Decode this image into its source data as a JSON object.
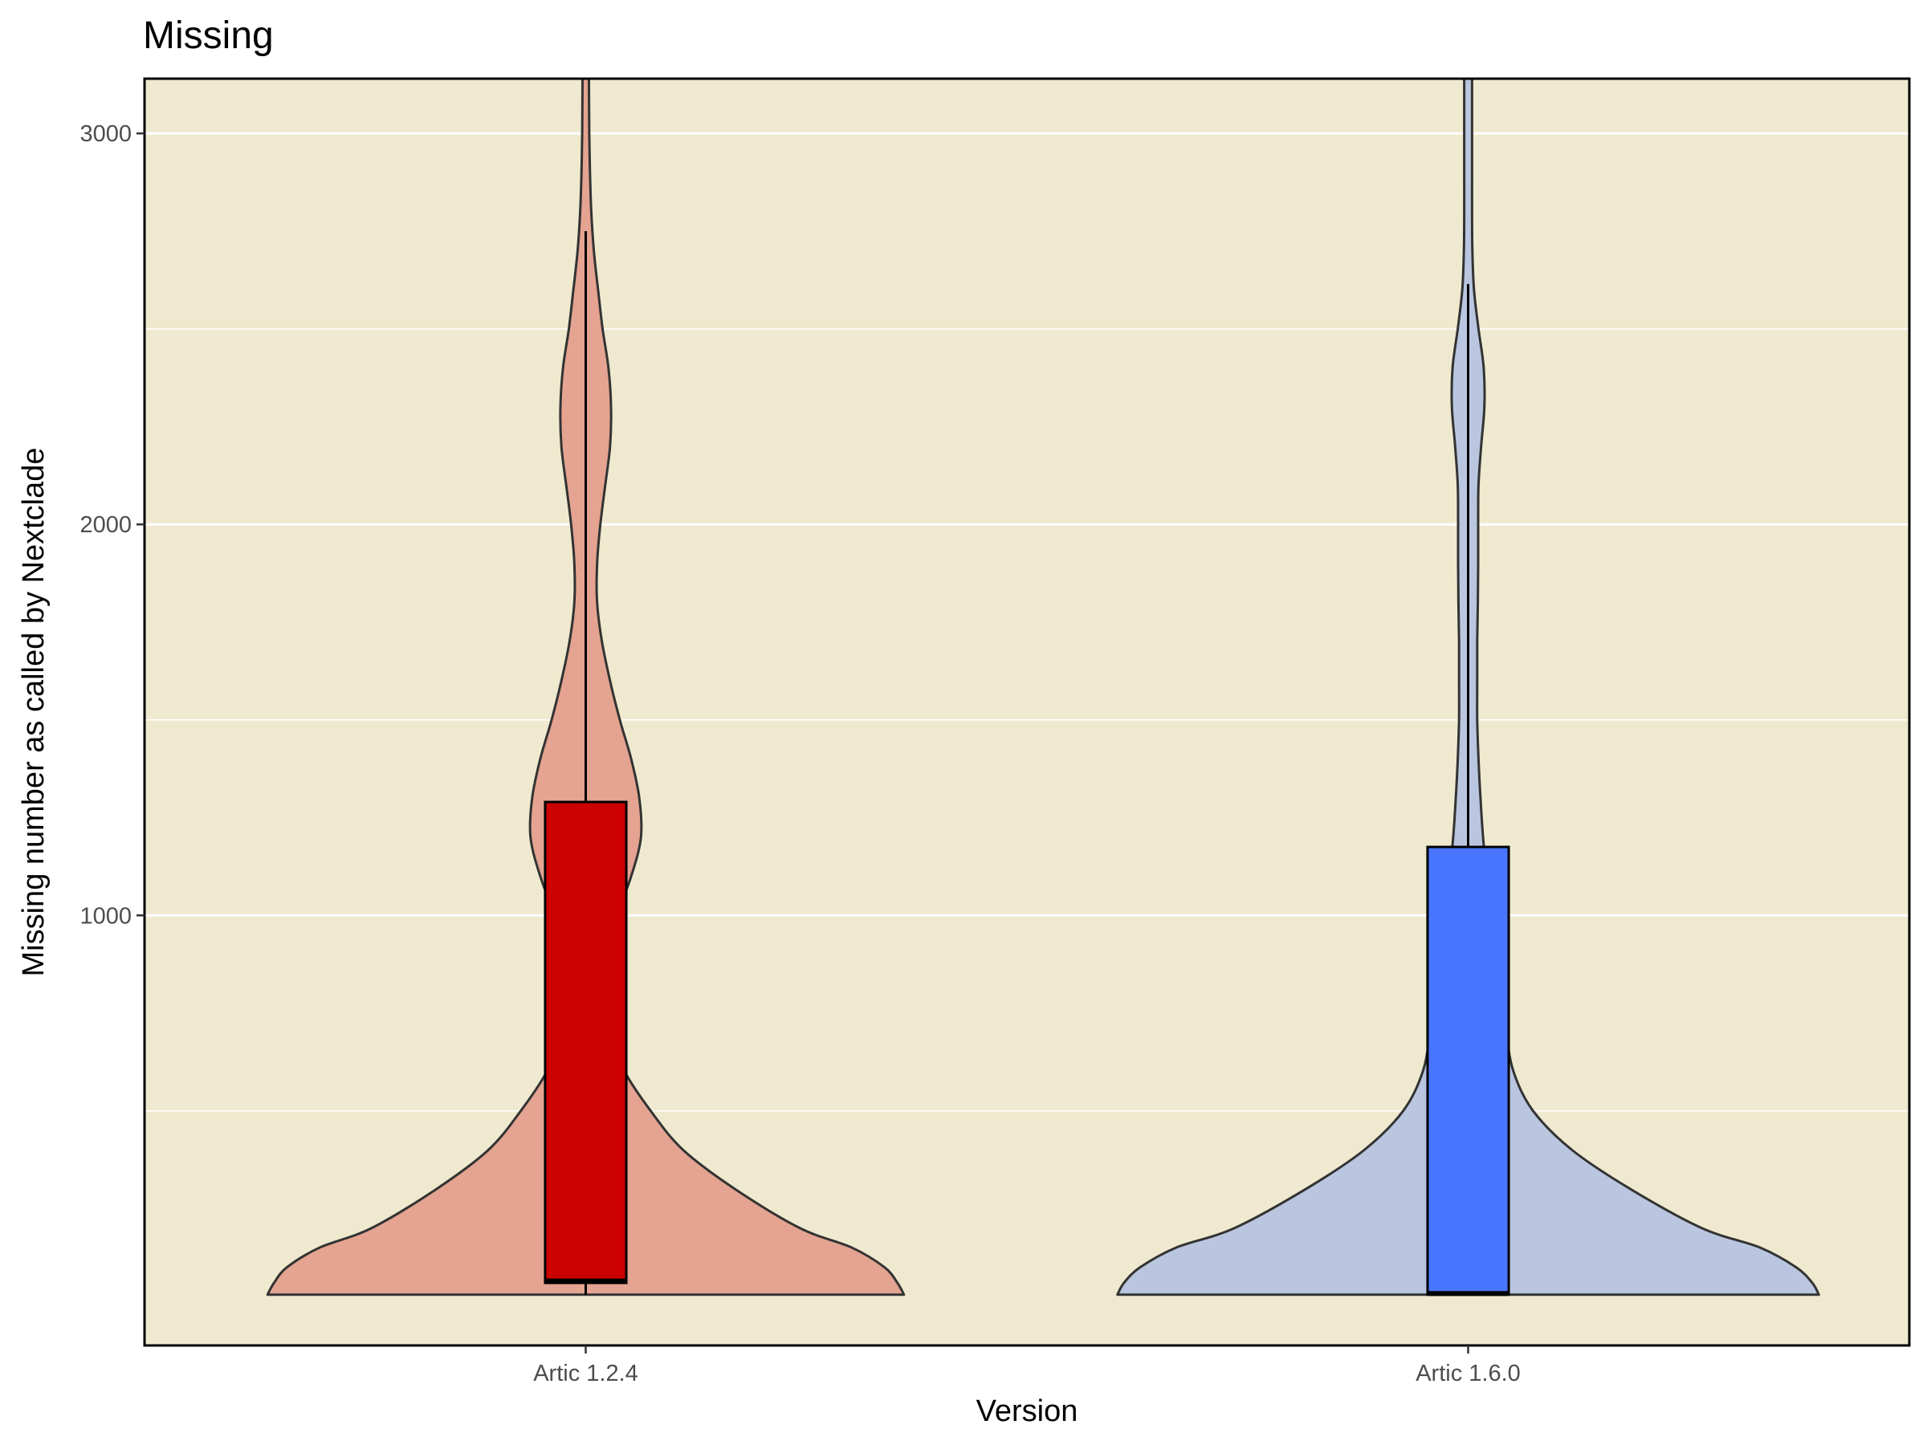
{
  "chart_data": {
    "type": "violin",
    "title": "Missing",
    "xlabel": "Version",
    "ylabel": "Missing number as called by Nextclade",
    "ylim": [
      -100,
      3140
    ],
    "yticks": [
      1000,
      2000,
      3000
    ],
    "yticks_minor": [
      500,
      1500,
      2500
    ],
    "grid": true,
    "colors": {
      "panel_background": "#efe9cf",
      "grid": "#ffffff",
      "violin_outline": "#333333",
      "box_outline": "#000000"
    },
    "categories": [
      "Artic 1.2.4",
      "Artic 1.6.0"
    ],
    "series": [
      {
        "category": "Artic 1.2.4",
        "violin_color": "#e4a491",
        "box_color": "#cc0000",
        "violin_range": [
          30,
          3140
        ],
        "density": [
          [
            30,
            0.98
          ],
          [
            60,
            0.96
          ],
          [
            100,
            0.92
          ],
          [
            150,
            0.82
          ],
          [
            200,
            0.66
          ],
          [
            300,
            0.46
          ],
          [
            400,
            0.3
          ],
          [
            500,
            0.2
          ],
          [
            600,
            0.12
          ],
          [
            700,
            0.07
          ],
          [
            800,
            0.045
          ],
          [
            900,
            0.05
          ],
          [
            1000,
            0.095
          ],
          [
            1100,
            0.14
          ],
          [
            1200,
            0.17
          ],
          [
            1300,
            0.165
          ],
          [
            1400,
            0.14
          ],
          [
            1500,
            0.105
          ],
          [
            1600,
            0.075
          ],
          [
            1700,
            0.05
          ],
          [
            1800,
            0.035
          ],
          [
            1900,
            0.035
          ],
          [
            2000,
            0.045
          ],
          [
            2100,
            0.06
          ],
          [
            2200,
            0.075
          ],
          [
            2300,
            0.078
          ],
          [
            2400,
            0.07
          ],
          [
            2500,
            0.052
          ],
          [
            2600,
            0.038
          ],
          [
            2700,
            0.025
          ],
          [
            2800,
            0.017
          ],
          [
            2900,
            0.013
          ],
          [
            3000,
            0.011
          ],
          [
            3140,
            0.01
          ]
        ],
        "box": {
          "whisker_low": 30,
          "q1": 60,
          "median": 65,
          "q3": 1290,
          "whisker_high": 2750
        }
      },
      {
        "category": "Artic 1.6.0",
        "violin_color": "#bac6df",
        "box_color": "#4a76ff",
        "violin_range": [
          30,
          3140
        ],
        "density": [
          [
            30,
            1.08
          ],
          [
            60,
            1.06
          ],
          [
            100,
            1.01
          ],
          [
            150,
            0.9
          ],
          [
            200,
            0.72
          ],
          [
            300,
            0.5
          ],
          [
            400,
            0.32
          ],
          [
            500,
            0.2
          ],
          [
            600,
            0.14
          ],
          [
            700,
            0.118
          ],
          [
            800,
            0.108
          ],
          [
            900,
            0.092
          ],
          [
            1000,
            0.075
          ],
          [
            1100,
            0.058
          ],
          [
            1200,
            0.046
          ],
          [
            1300,
            0.038
          ],
          [
            1400,
            0.032
          ],
          [
            1500,
            0.028
          ],
          [
            1600,
            0.028
          ],
          [
            1700,
            0.028
          ],
          [
            1800,
            0.03
          ],
          [
            1900,
            0.031
          ],
          [
            2000,
            0.031
          ],
          [
            2100,
            0.032
          ],
          [
            2200,
            0.04
          ],
          [
            2300,
            0.05
          ],
          [
            2400,
            0.048
          ],
          [
            2500,
            0.032
          ],
          [
            2600,
            0.018
          ],
          [
            2700,
            0.013
          ],
          [
            2800,
            0.012
          ],
          [
            2900,
            0.012
          ],
          [
            3000,
            0.012
          ],
          [
            3140,
            0.012
          ]
        ],
        "box": {
          "whisker_low": 30,
          "q1": 30,
          "median": 33,
          "q3": 1175,
          "whisker_high": 2615
        }
      }
    ]
  }
}
